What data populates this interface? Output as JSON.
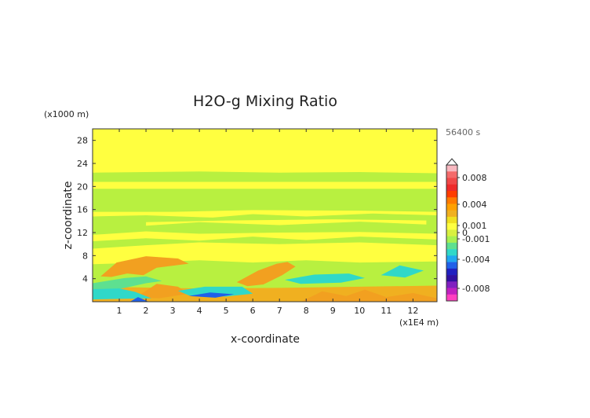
{
  "chart_data": {
    "type": "heatmap",
    "title": "H2O-g Mixing Ratio",
    "xlabel": "x-coordinate",
    "ylabel": "z-coordinate",
    "x_unit_label": "(x1E4 m)",
    "y_unit_label": "(x1000 m)",
    "time_label": "56400 s",
    "x_range": [
      0,
      12.9
    ],
    "y_range": [
      0,
      30
    ],
    "x_ticks": [
      "1",
      "2",
      "3",
      "4",
      "5",
      "6",
      "7",
      "8",
      "9",
      "10",
      "11",
      "12"
    ],
    "y_ticks": [
      "4",
      "8",
      "12",
      "16",
      "20",
      "24",
      "28"
    ],
    "colorbar": {
      "tick_labels": [
        "0.008",
        "0.004",
        "0.001",
        "0",
        "-0.001",
        "-0.004",
        "-0.008"
      ],
      "tick_values": [
        0.008,
        0.004,
        0.001,
        0,
        -0.001,
        -0.004,
        -0.008
      ],
      "levels": [
        {
          "color": "#f8b8c0"
        },
        {
          "color": "#f46a6a"
        },
        {
          "color": "#f04848"
        },
        {
          "color": "#ee2a2a"
        },
        {
          "color": "#ff3c00"
        },
        {
          "color": "#ff7a00"
        },
        {
          "color": "#ffa000"
        },
        {
          "color": "#f0b020"
        },
        {
          "color": "#f0e020"
        },
        {
          "color": "#ffff40"
        },
        {
          "color": "#d8f040"
        },
        {
          "color": "#a8f050"
        },
        {
          "color": "#5ee090"
        },
        {
          "color": "#30d8c8"
        },
        {
          "color": "#20a8f0"
        },
        {
          "color": "#2060e8"
        },
        {
          "color": "#2020c0"
        },
        {
          "color": "#3010a0"
        },
        {
          "color": "#8020c0"
        },
        {
          "color": "#c020c0"
        },
        {
          "color": "#ff40c0"
        }
      ]
    },
    "field_colors": {
      "background": "#ffff40",
      "pale_green": "#b8f040",
      "light_green": "#a8f050",
      "orange": "#f2a020",
      "pale_orange": "#f0b020",
      "teal": "#30d8c8",
      "sea_green": "#5ee090",
      "blue": "#2060e8"
    },
    "regions": [
      {
        "level": "pale_green",
        "points": [
          [
            0,
            0
          ],
          [
            12.9,
            0
          ],
          [
            12.9,
            22.3
          ],
          [
            10,
            22.5
          ],
          [
            7,
            22.4
          ],
          [
            4,
            22.6
          ],
          [
            0,
            22.4
          ]
        ]
      },
      {
        "level": "background",
        "points": [
          [
            0,
            19.6
          ],
          [
            12.9,
            19.6
          ],
          [
            12.9,
            20.8
          ],
          [
            0,
            20.8
          ]
        ]
      },
      {
        "level": "background",
        "points": [
          [
            0,
            14.8
          ],
          [
            2,
            15
          ],
          [
            4.5,
            14.6
          ],
          [
            6,
            15.2
          ],
          [
            8,
            14.8
          ],
          [
            10.5,
            15.3
          ],
          [
            12.9,
            15
          ],
          [
            12.9,
            15.6
          ],
          [
            10,
            15.8
          ],
          [
            6,
            15.9
          ],
          [
            3,
            15.6
          ],
          [
            0,
            15.6
          ]
        ]
      },
      {
        "level": "background",
        "points": [
          [
            2,
            13.2
          ],
          [
            4,
            13.8
          ],
          [
            7,
            13.3
          ],
          [
            10,
            13.9
          ],
          [
            12.5,
            13.4
          ],
          [
            12.5,
            14.1
          ],
          [
            9,
            14.3
          ],
          [
            5,
            14.1
          ],
          [
            2,
            13.8
          ]
        ]
      },
      {
        "level": "background",
        "points": [
          [
            0,
            10.5
          ],
          [
            2,
            11
          ],
          [
            4,
            10.6
          ],
          [
            6,
            11.3
          ],
          [
            8,
            10.7
          ],
          [
            10,
            11.3
          ],
          [
            12.9,
            10.8
          ],
          [
            12.9,
            11.8
          ],
          [
            10,
            12.1
          ],
          [
            7,
            12
          ],
          [
            4,
            11.8
          ],
          [
            2,
            12.2
          ],
          [
            0,
            11.6
          ]
        ]
      },
      {
        "level": "background",
        "points": [
          [
            0,
            6.5
          ],
          [
            2,
            6.8
          ],
          [
            4,
            7.2
          ],
          [
            6,
            6.8
          ],
          [
            8,
            7.2
          ],
          [
            10,
            6.8
          ],
          [
            12.9,
            7
          ],
          [
            12.9,
            9.8
          ],
          [
            10,
            10.3
          ],
          [
            7,
            10
          ],
          [
            4,
            10.3
          ],
          [
            2,
            9.8
          ],
          [
            0,
            9.2
          ]
        ]
      },
      {
        "level": "pale_orange",
        "points": [
          [
            0,
            0
          ],
          [
            12.9,
            0
          ],
          [
            12.9,
            2.8
          ],
          [
            10,
            2.6
          ],
          [
            7,
            2.4
          ],
          [
            4,
            2.3
          ],
          [
            0,
            2.6
          ]
        ]
      },
      {
        "level": "orange",
        "points": [
          [
            0.3,
            4.4
          ],
          [
            0.9,
            6.8
          ],
          [
            2,
            7.9
          ],
          [
            3.2,
            7.5
          ],
          [
            3.6,
            6.6
          ],
          [
            2.4,
            5.9
          ],
          [
            1.9,
            4.6
          ],
          [
            1.3,
            4.9
          ],
          [
            0.7,
            4.3
          ]
        ]
      },
      {
        "level": "orange",
        "points": [
          [
            5.4,
            3.4
          ],
          [
            6.2,
            5.4
          ],
          [
            6.9,
            6.6
          ],
          [
            7.3,
            6.9
          ],
          [
            7.6,
            6.1
          ],
          [
            7.1,
            4.6
          ],
          [
            6.4,
            3
          ],
          [
            5.8,
            2.7
          ]
        ]
      },
      {
        "level": "orange",
        "points": [
          [
            1.6,
            0.7
          ],
          [
            2.4,
            3.1
          ],
          [
            3.2,
            2.6
          ],
          [
            3.6,
            1.4
          ],
          [
            2.5,
            0.6
          ]
        ]
      },
      {
        "level": "sea_green",
        "points": [
          [
            0,
            3.2
          ],
          [
            1.2,
            4.1
          ],
          [
            2,
            4.4
          ],
          [
            2.6,
            3.6
          ],
          [
            2,
            3.2
          ],
          [
            1,
            2.2
          ],
          [
            0,
            2.2
          ]
        ]
      },
      {
        "level": "teal",
        "points": [
          [
            0,
            2.2
          ],
          [
            1,
            2.3
          ],
          [
            1.6,
            1.7
          ],
          [
            2.2,
            0.6
          ],
          [
            0,
            0.4
          ]
        ]
      },
      {
        "level": "teal",
        "points": [
          [
            3.2,
            1.9
          ],
          [
            4.2,
            2.6
          ],
          [
            5.6,
            2.6
          ],
          [
            6,
            1.4
          ],
          [
            5,
            0.9
          ],
          [
            3.6,
            1.1
          ]
        ]
      },
      {
        "level": "teal",
        "points": [
          [
            7.2,
            3.8
          ],
          [
            8.3,
            4.7
          ],
          [
            9.6,
            4.9
          ],
          [
            10.2,
            4.1
          ],
          [
            9.3,
            3.3
          ],
          [
            7.8,
            3.1
          ]
        ]
      },
      {
        "level": "teal",
        "points": [
          [
            10.8,
            4.6
          ],
          [
            11.5,
            6.3
          ],
          [
            12.4,
            5.4
          ],
          [
            11.7,
            4.2
          ]
        ]
      },
      {
        "level": "blue",
        "points": [
          [
            3.6,
            1
          ],
          [
            4.4,
            1.6
          ],
          [
            5.3,
            1.3
          ],
          [
            4.6,
            0.7
          ]
        ]
      },
      {
        "level": "blue",
        "points": [
          [
            1.4,
            0
          ],
          [
            1.7,
            0.8
          ],
          [
            2.1,
            0
          ]
        ]
      },
      {
        "level": "orange",
        "points": [
          [
            7.8,
            0
          ],
          [
            8.6,
            1.8
          ],
          [
            9.5,
            1
          ],
          [
            10.2,
            2.1
          ],
          [
            11,
            0.8
          ],
          [
            12,
            1.5
          ],
          [
            12.9,
            0.6
          ],
          [
            12.9,
            0
          ]
        ]
      }
    ]
  }
}
